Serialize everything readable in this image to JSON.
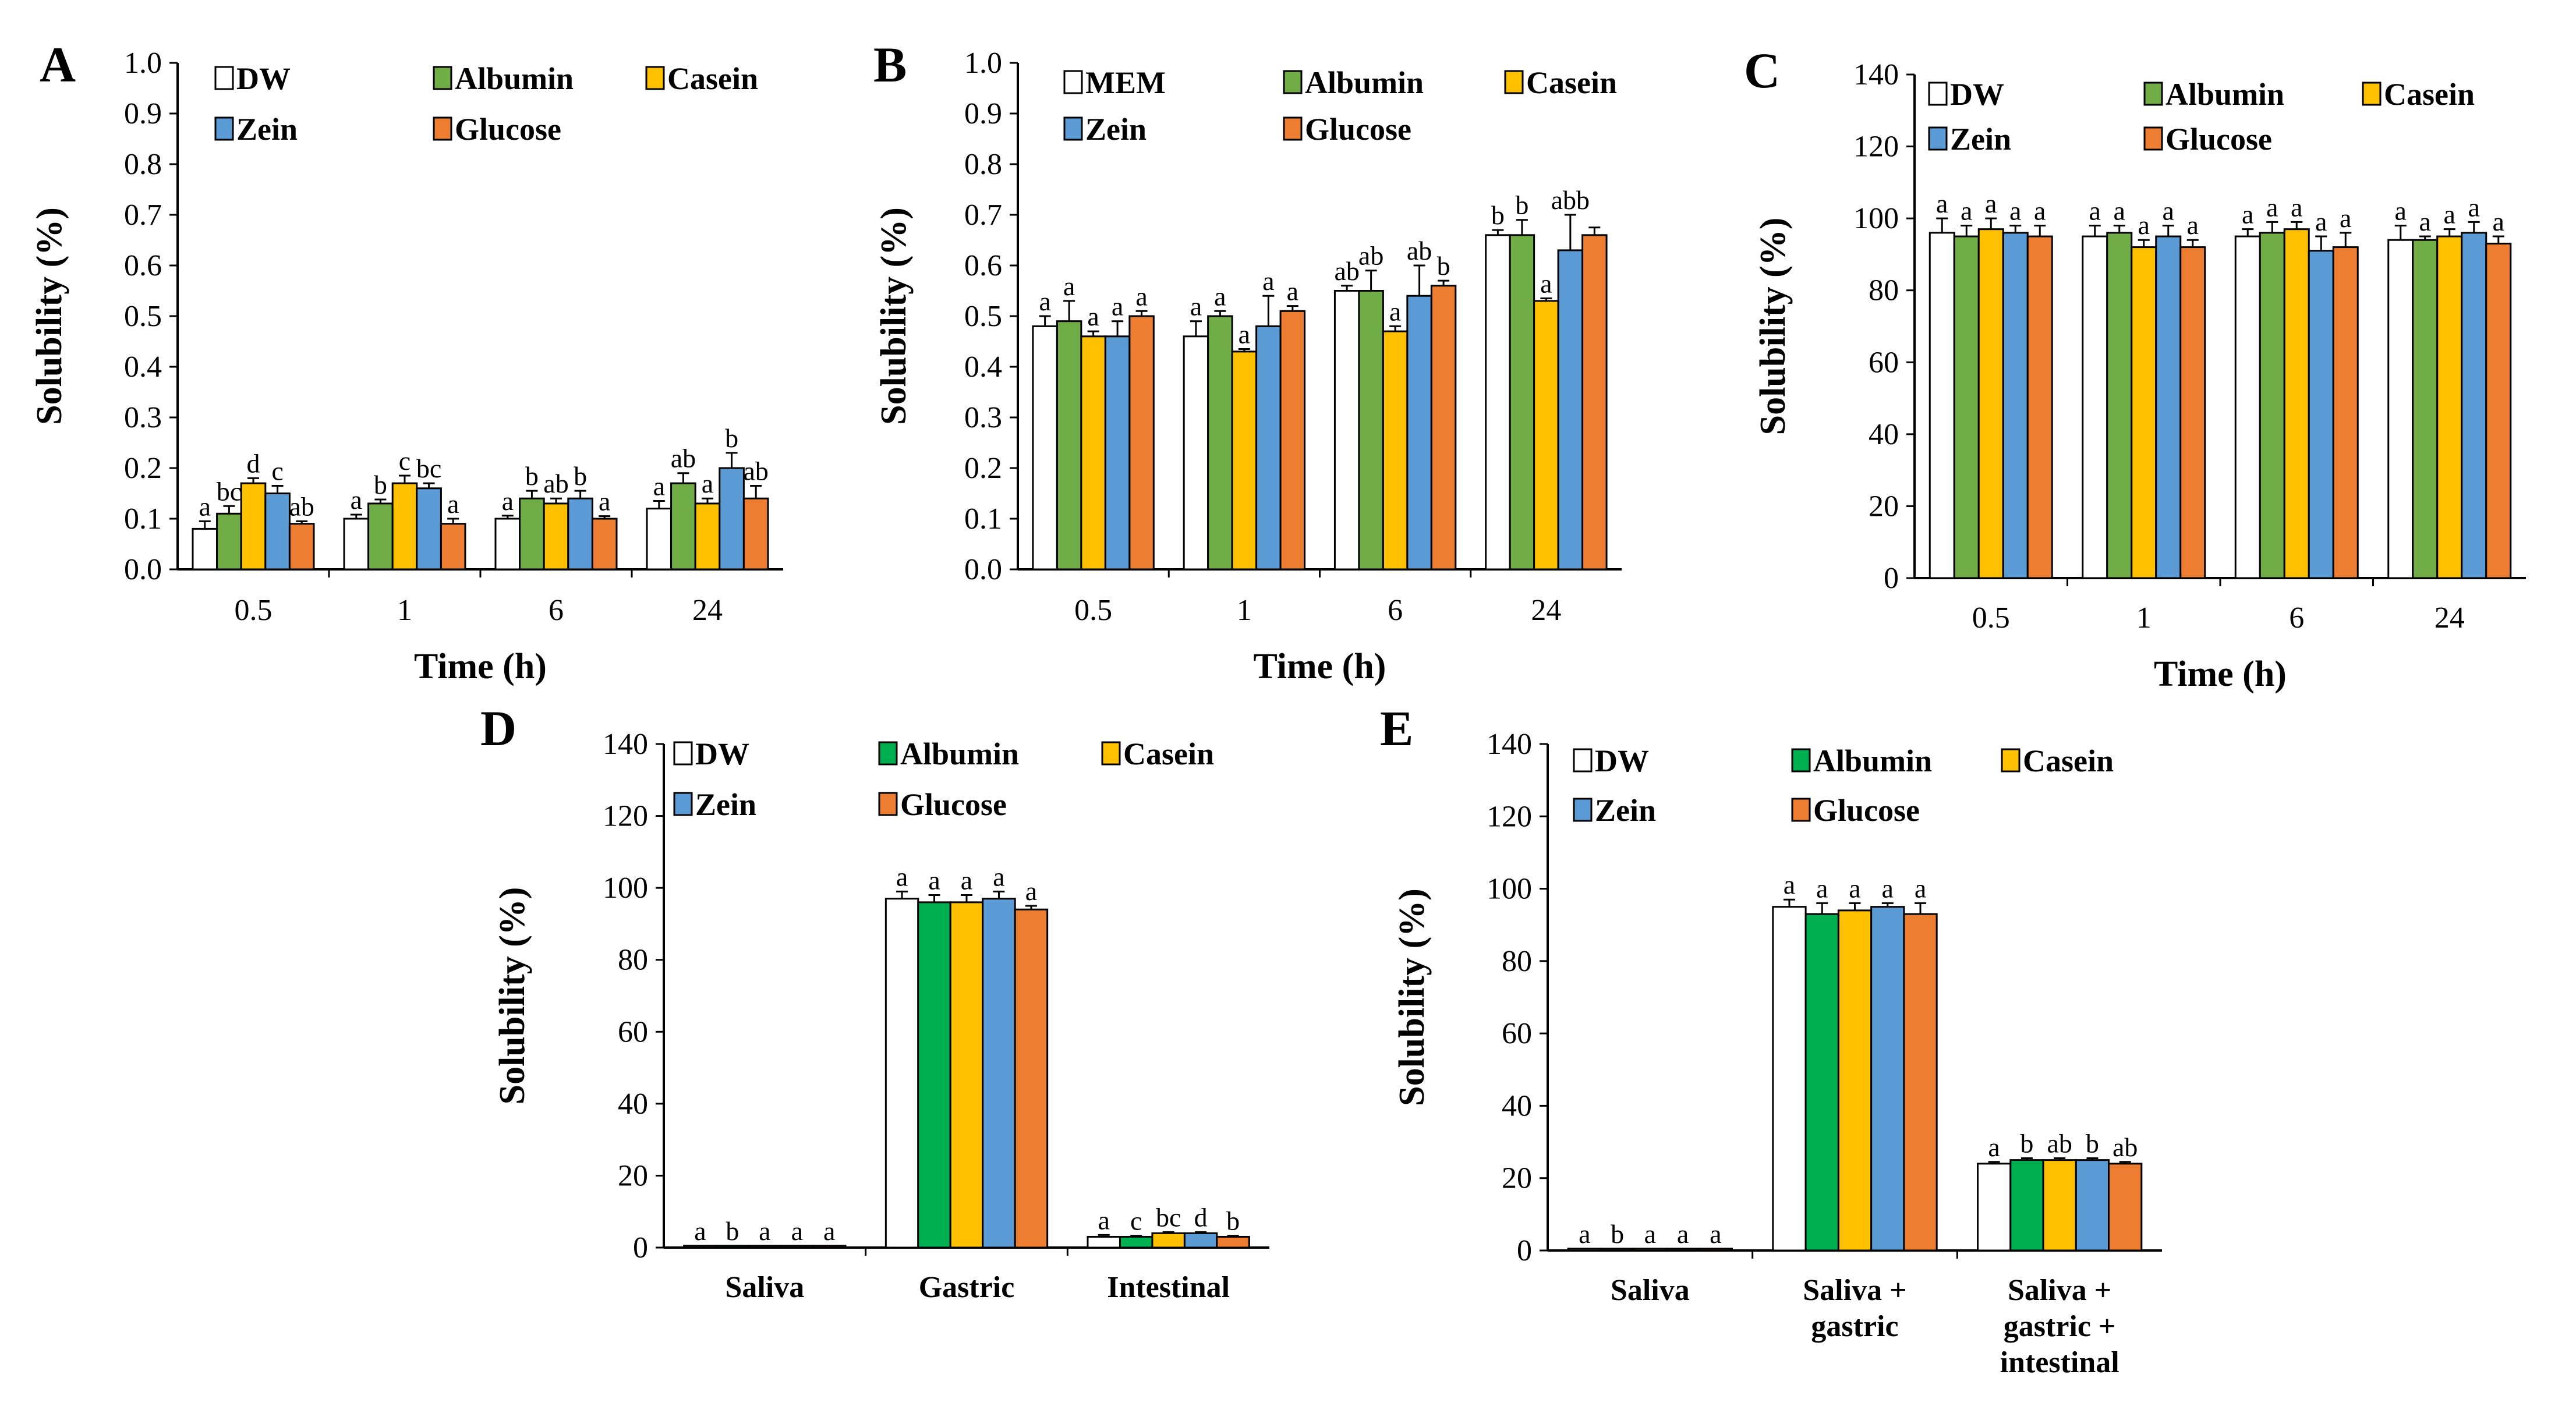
{
  "colors": {
    "DW": "#ffffff",
    "MEM": "#ffffff",
    "Albumin_green": "#70ad47",
    "Albumin_bright": "#00b050",
    "Casein": "#ffc000",
    "Zein": "#5b9bd5",
    "Glucose": "#ed7d31"
  },
  "chart_data": [
    {
      "panel": "A",
      "type": "bar",
      "xlabel": "Time (h)",
      "ylabel": "Solubility (%)",
      "ylim": [
        0,
        1.0
      ],
      "yticks": [
        "0.0",
        "0.1",
        "0.2",
        "0.3",
        "0.4",
        "0.5",
        "0.6",
        "0.7",
        "0.8",
        "0.9",
        "1.0"
      ],
      "categories": [
        "0.5",
        "1",
        "6",
        "24"
      ],
      "legend": [
        "DW",
        "Albumin",
        "Casein",
        "Zein",
        "Glucose"
      ],
      "series": [
        {
          "name": "DW",
          "color": "#ffffff",
          "values": [
            0.08,
            0.1,
            0.1,
            0.12
          ],
          "errors": [
            0.015,
            0.008,
            0.006,
            0.015
          ],
          "labels": [
            "a",
            "a",
            "a",
            "a"
          ]
        },
        {
          "name": "Albumin",
          "color": "#70ad47",
          "values": [
            0.11,
            0.13,
            0.14,
            0.17
          ],
          "errors": [
            0.015,
            0.008,
            0.015,
            0.02
          ],
          "labels": [
            "bc",
            "b",
            "b",
            "ab"
          ]
        },
        {
          "name": "Casein",
          "color": "#ffc000",
          "values": [
            0.17,
            0.17,
            0.13,
            0.13
          ],
          "errors": [
            0.01,
            0.015,
            0.01,
            0.01
          ],
          "labels": [
            "d",
            "c",
            "ab",
            "a"
          ]
        },
        {
          "name": "Zein",
          "color": "#5b9bd5",
          "values": [
            0.15,
            0.16,
            0.14,
            0.2
          ],
          "errors": [
            0.015,
            0.01,
            0.015,
            0.03
          ],
          "labels": [
            "c",
            "bc",
            "b",
            "b"
          ]
        },
        {
          "name": "Glucose",
          "color": "#ed7d31",
          "values": [
            0.09,
            0.09,
            0.1,
            0.14
          ],
          "errors": [
            0.005,
            0.01,
            0.005,
            0.025
          ],
          "labels": [
            "ab",
            "a",
            "a",
            "ab"
          ]
        }
      ]
    },
    {
      "panel": "B",
      "type": "bar",
      "xlabel": "Time (h)",
      "ylabel": "Solubility (%)",
      "ylim": [
        0,
        1.0
      ],
      "yticks": [
        "0.0",
        "0.1",
        "0.2",
        "0.3",
        "0.4",
        "0.5",
        "0.6",
        "0.7",
        "0.8",
        "0.9",
        "1.0"
      ],
      "categories": [
        "0.5",
        "1",
        "6",
        "24"
      ],
      "legend": [
        "MEM",
        "Albumin",
        "Casein",
        "Zein",
        "Glucose"
      ],
      "series": [
        {
          "name": "MEM",
          "color": "#ffffff",
          "values": [
            0.48,
            0.46,
            0.55,
            0.66
          ],
          "errors": [
            0.02,
            0.03,
            0.01,
            0.01
          ],
          "labels": [
            "a",
            "a",
            "ab",
            "b"
          ]
        },
        {
          "name": "Albumin",
          "color": "#70ad47",
          "values": [
            0.49,
            0.5,
            0.55,
            0.66
          ],
          "errors": [
            0.04,
            0.01,
            0.04,
            0.03
          ],
          "labels": [
            "a",
            "a",
            "ab",
            "b"
          ]
        },
        {
          "name": "Casein",
          "color": "#ffc000",
          "values": [
            0.46,
            0.43,
            0.47,
            0.53
          ],
          "errors": [
            0.01,
            0.005,
            0.01,
            0.005
          ],
          "labels": [
            "a",
            "a",
            "a",
            "a"
          ]
        },
        {
          "name": "Zein",
          "color": "#5b9bd5",
          "values": [
            0.46,
            0.48,
            0.54,
            0.63
          ],
          "errors": [
            0.03,
            0.06,
            0.06,
            0.07
          ],
          "labels": [
            "a",
            "a",
            "ab",
            "abb"
          ]
        },
        {
          "name": "Glucose",
          "color": "#ed7d31",
          "values": [
            0.5,
            0.51,
            0.56,
            0.66
          ],
          "errors": [
            0.01,
            0.01,
            0.01,
            0.015
          ],
          "labels": [
            "a",
            "a",
            "b",
            ""
          ]
        }
      ]
    },
    {
      "panel": "C",
      "type": "bar",
      "xlabel": "Time (h)",
      "ylabel": "Solubility (%)",
      "ylim": [
        0,
        140
      ],
      "yticks": [
        "0",
        "20",
        "40",
        "60",
        "80",
        "100",
        "120",
        "140"
      ],
      "categories": [
        "0.5",
        "1",
        "6",
        "24"
      ],
      "legend": [
        "DW",
        "Albumin",
        "Casein",
        "Zein",
        "Glucose"
      ],
      "series": [
        {
          "name": "DW",
          "color": "#ffffff",
          "values": [
            96,
            95,
            95,
            94
          ],
          "errors": [
            4,
            3,
            2,
            4
          ],
          "labels": [
            "a",
            "a",
            "a",
            "a"
          ]
        },
        {
          "name": "Albumin",
          "color": "#70ad47",
          "values": [
            95,
            96,
            96,
            94
          ],
          "errors": [
            3,
            2,
            3,
            1
          ],
          "labels": [
            "a",
            "a",
            "a",
            "a"
          ]
        },
        {
          "name": "Casein",
          "color": "#ffc000",
          "values": [
            97,
            92,
            97,
            95
          ],
          "errors": [
            3,
            2,
            2,
            2
          ],
          "labels": [
            "a",
            "a",
            "a",
            "a"
          ]
        },
        {
          "name": "Zein",
          "color": "#5b9bd5",
          "values": [
            96,
            95,
            91,
            96
          ],
          "errors": [
            2,
            3,
            4,
            3
          ],
          "labels": [
            "a",
            "a",
            "a",
            "a"
          ]
        },
        {
          "name": "Glucose",
          "color": "#ed7d31",
          "values": [
            95,
            92,
            92,
            93
          ],
          "errors": [
            3,
            2,
            4,
            2
          ],
          "labels": [
            "a",
            "a",
            "a",
            "a"
          ]
        }
      ]
    },
    {
      "panel": "D",
      "type": "bar",
      "xlabel": "",
      "ylabel": "Solubility (%)",
      "ylim": [
        0,
        140
      ],
      "yticks": [
        "0",
        "20",
        "40",
        "60",
        "80",
        "100",
        "120",
        "140"
      ],
      "categories": [
        "Saliva",
        "Gastric",
        "Intestinal"
      ],
      "legend": [
        "DW",
        "Albumin",
        "Casein",
        "Zein",
        "Glucose"
      ],
      "series": [
        {
          "name": "DW",
          "color": "#ffffff",
          "values": [
            0.5,
            97,
            3
          ],
          "errors": [
            0,
            2,
            0.5
          ],
          "labels": [
            "a",
            "a",
            "a"
          ]
        },
        {
          "name": "Albumin",
          "color": "#00b050",
          "values": [
            0.5,
            96,
            3
          ],
          "errors": [
            0,
            2,
            0.3
          ],
          "labels": [
            "b",
            "a",
            "c"
          ]
        },
        {
          "name": "Casein",
          "color": "#ffc000",
          "values": [
            0.5,
            96,
            4
          ],
          "errors": [
            0,
            2,
            0.3
          ],
          "labels": [
            "a",
            "a",
            "bc"
          ]
        },
        {
          "name": "Zein",
          "color": "#5b9bd5",
          "values": [
            0.5,
            97,
            4
          ],
          "errors": [
            0,
            2,
            0.3
          ],
          "labels": [
            "a",
            "a",
            "d"
          ]
        },
        {
          "name": "Glucose",
          "color": "#ed7d31",
          "values": [
            0.5,
            94,
            3
          ],
          "errors": [
            0,
            1,
            0.3
          ],
          "labels": [
            "a",
            "a",
            "b"
          ]
        }
      ]
    },
    {
      "panel": "E",
      "type": "bar",
      "xlabel": "",
      "ylabel": "Solubility (%)",
      "ylim": [
        0,
        140
      ],
      "yticks": [
        "0",
        "20",
        "40",
        "60",
        "80",
        "100",
        "120",
        "140"
      ],
      "categories": [
        "Saliva",
        "Saliva +\ngastric",
        "Saliva +\ngastric +\nintestinal"
      ],
      "legend": [
        "DW",
        "Albumin",
        "Casein",
        "Zein",
        "Glucose"
      ],
      "series": [
        {
          "name": "DW",
          "color": "#ffffff",
          "values": [
            0.5,
            95,
            24
          ],
          "errors": [
            0,
            2,
            0.5
          ],
          "labels": [
            "a",
            "a",
            "a"
          ]
        },
        {
          "name": "Albumin",
          "color": "#00b050",
          "values": [
            0.5,
            93,
            25
          ],
          "errors": [
            0,
            3,
            0.5
          ],
          "labels": [
            "b",
            "a",
            "b"
          ]
        },
        {
          "name": "Casein",
          "color": "#ffc000",
          "values": [
            0.5,
            94,
            25
          ],
          "errors": [
            0,
            2,
            0.5
          ],
          "labels": [
            "a",
            "a",
            "ab"
          ]
        },
        {
          "name": "Zein",
          "color": "#5b9bd5",
          "values": [
            0.5,
            95,
            25
          ],
          "errors": [
            0,
            1,
            0.5
          ],
          "labels": [
            "a",
            "a",
            "b"
          ]
        },
        {
          "name": "Glucose",
          "color": "#ed7d31",
          "values": [
            0.5,
            93,
            24
          ],
          "errors": [
            0,
            3,
            0.5
          ],
          "labels": [
            "a",
            "a",
            "ab"
          ]
        }
      ]
    }
  ]
}
